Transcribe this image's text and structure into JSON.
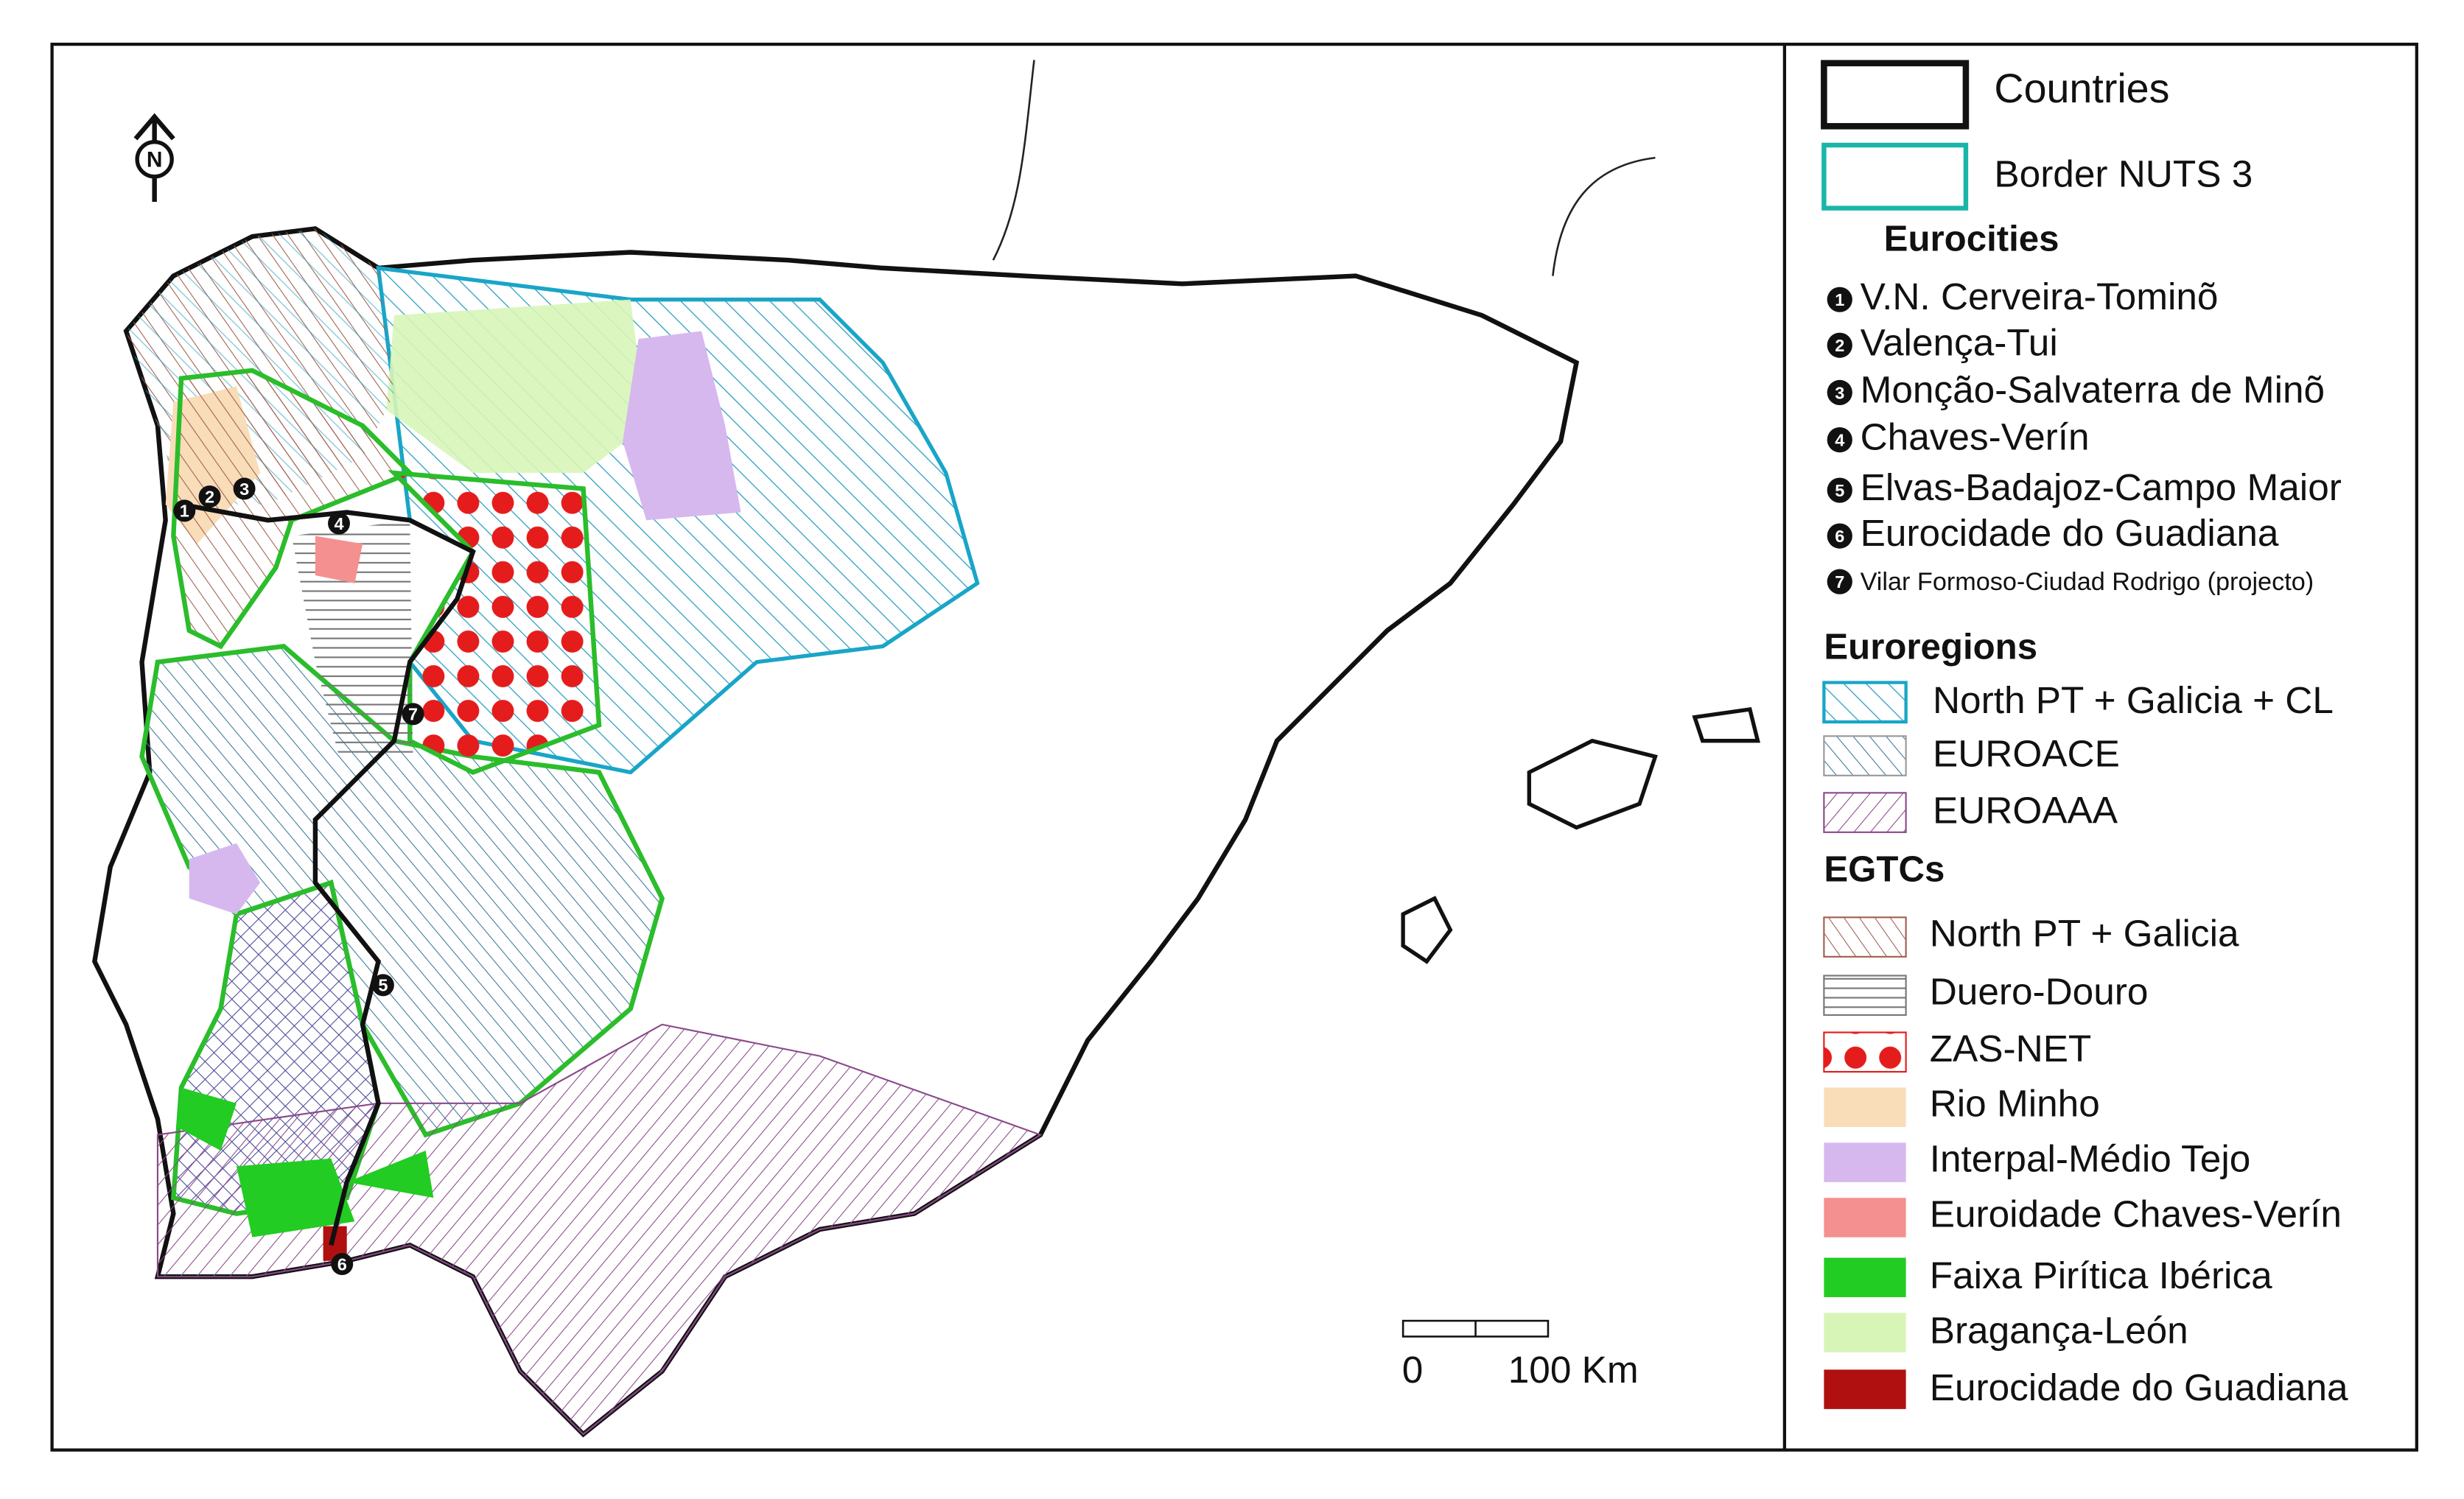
{
  "north_arrow": "N",
  "legend": {
    "layers": [
      {
        "label": "Countries"
      },
      {
        "label": "Border NUTS 3"
      }
    ],
    "eurocities": {
      "title": "Eurocities",
      "items": [
        {
          "number": "1",
          "label": "V.N. Cerveira-Tominõ"
        },
        {
          "number": "2",
          "label": "Valença-Tui"
        },
        {
          "number": "3",
          "label": "Monção-Salvaterra de Minõ"
        },
        {
          "number": "4",
          "label": "Chaves-Verín"
        },
        {
          "number": "5",
          "label": "Elvas-Badajoz-Campo Maior"
        },
        {
          "number": "6",
          "label": "Eurocidade do Guadiana"
        },
        {
          "number": "7",
          "label": "Vilar Formoso-Ciudad Rodrigo (projecto)"
        }
      ]
    },
    "euroregions": {
      "title": "Euroregions",
      "items": [
        {
          "label": "North PT + Galicia + CL"
        },
        {
          "label": "EUROACE"
        },
        {
          "label": "EUROAAA"
        }
      ]
    },
    "egtcs": {
      "title": "EGTCs",
      "items": [
        {
          "label": "North PT + Galicia"
        },
        {
          "label": "Duero-Douro"
        },
        {
          "label": "ZAS-NET"
        },
        {
          "label": "Rio Minho"
        },
        {
          "label": "Interpal-Médio Tejo"
        },
        {
          "label": "Euroidade Chaves-Verín"
        },
        {
          "label": "Faixa Pirítica Ibérica"
        },
        {
          "label": "Bragança-León"
        },
        {
          "label": "Eurocidade do Guadiana"
        }
      ]
    }
  },
  "scale_bar": {
    "start": "0",
    "end": "100 Km"
  }
}
